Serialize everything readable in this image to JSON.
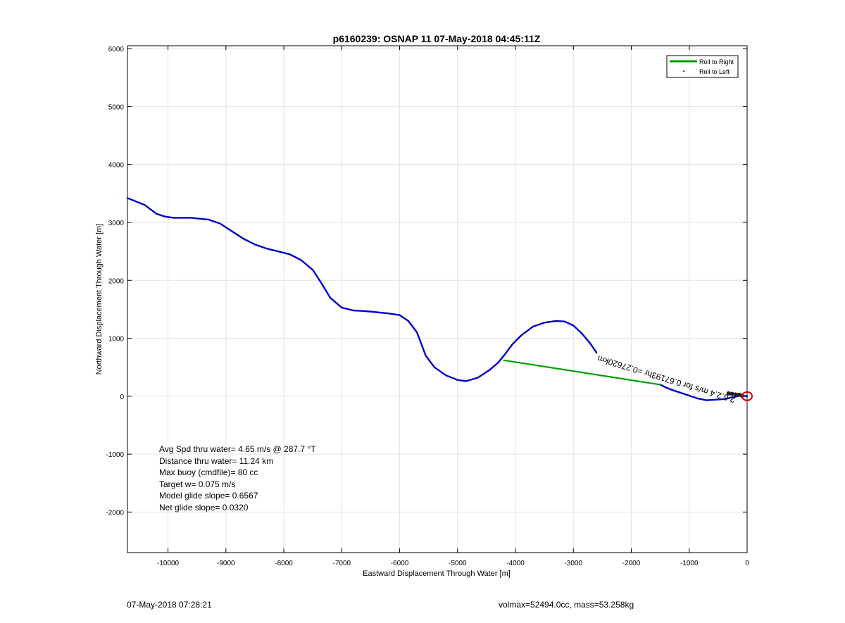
{
  "chart_data": {
    "type": "line",
    "title": "p6160239: OSNAP 11 07-May-2018 04:45:11Z",
    "xlabel": "Eastward Displacement Through Water [m]",
    "ylabel": "Northward Displacement Through Water [m]",
    "xlim": [
      -10700,
      0
    ],
    "ylim": [
      -2700,
      6050
    ],
    "xticks": [
      -10000,
      -9000,
      -8000,
      -7000,
      -6000,
      -5000,
      -4000,
      -3000,
      -2000,
      -1000,
      0
    ],
    "yticks": [
      -2000,
      -1000,
      0,
      1000,
      2000,
      3000,
      4000,
      5000,
      6000
    ],
    "grid": true,
    "legend": {
      "position": "top-right",
      "entries": [
        {
          "label": "Roll to Right",
          "color": "#00a000",
          "style": "line"
        },
        {
          "label": "Roll to Left",
          "color": "#ff0000",
          "style": "dot"
        }
      ]
    },
    "series": [
      {
        "color": "#0000c8",
        "x": [
          -10700,
          -10400,
          -10200,
          -10050,
          -9900,
          -9600,
          -9300,
          -9100,
          -8900,
          -8700,
          -8500,
          -8300,
          -8100,
          -7900,
          -7700,
          -7500,
          -7350,
          -7200,
          -7000,
          -6800,
          -6600,
          -6400,
          -6200,
          -6000,
          -5850,
          -5700,
          -5550,
          -5400,
          -5200,
          -5000,
          -4850,
          -4650,
          -4450,
          -4300,
          -4200,
          -4050,
          -3900,
          -3700,
          -3500,
          -3300,
          -3150,
          -3000,
          -2850,
          -2700,
          -2600
        ],
        "y": [
          3420,
          3300,
          3150,
          3100,
          3080,
          3080,
          3050,
          2980,
          2850,
          2720,
          2620,
          2550,
          2500,
          2450,
          2350,
          2180,
          1950,
          1700,
          1530,
          1480,
          1470,
          1450,
          1430,
          1400,
          1300,
          1100,
          700,
          500,
          360,
          280,
          260,
          320,
          450,
          580,
          700,
          900,
          1050,
          1200,
          1270,
          1300,
          1290,
          1220,
          1080,
          900,
          750
        ]
      },
      {
        "color": "#0000c8",
        "x": [
          -1500,
          -1400,
          -1300,
          -1150,
          -1000,
          -850,
          -700,
          -550,
          -400,
          -250,
          -120,
          0
        ],
        "y": [
          200,
          150,
          110,
          60,
          10,
          -40,
          -70,
          -60,
          -50,
          -20,
          10,
          0
        ]
      },
      {
        "color": "#00a000",
        "x": [
          -4200,
          -1500
        ],
        "y": [
          620,
          200
        ]
      }
    ],
    "annotations": {
      "rotated_label": "2.6.2.4 m/s for 0.67193hr =0.27620km",
      "end_marker_color": "#d00000",
      "stats": [
        "Avg Spd thru water=  4.65 m/s @ 287.7 °T",
        "Distance thru water= 11.24 km",
        "Max buoy (cmdfile)= 80 cc",
        "Target w= 0.075 m/s",
        "Model glide slope= 0.6567",
        "Net glide slope= 0.0320"
      ]
    }
  },
  "footer": {
    "timestamp": "07-May-2018 07:28:21",
    "vehicle_info": "volmax=52494.0cc, mass=53.258kg"
  }
}
